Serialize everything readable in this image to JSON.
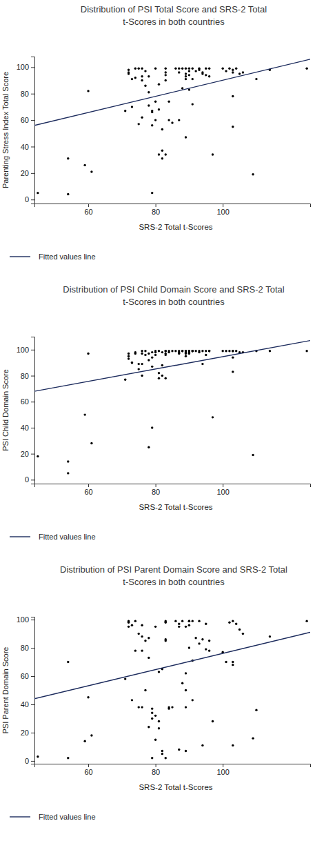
{
  "chart_data": [
    {
      "type": "scatter",
      "title": [
        "Distribution of PSI Total Score and SRS-2 Total",
        "t-Scores in both countries"
      ],
      "x_label": "SRS-2 Total t-Scores",
      "y_label": "Parenting Stress Index Total Score",
      "xlim": [
        44,
        126
      ],
      "xticks": [
        60,
        80,
        100
      ],
      "ylim": [
        -3,
        108
      ],
      "yticks": [
        0,
        20,
        40,
        60,
        80,
        100
      ],
      "grid": false,
      "legend": "bottom",
      "series": [
        {
          "type": "scatter",
          "marker": "circle",
          "color": "#000000",
          "x": [
            45,
            54,
            54,
            59,
            60,
            61,
            71,
            72,
            72,
            72,
            73,
            73,
            74,
            74,
            75,
            75,
            76,
            76,
            76,
            76,
            77,
            77,
            78,
            78,
            78,
            79,
            79,
            79,
            79,
            80,
            80,
            80,
            81,
            81,
            81,
            82,
            82,
            82,
            83,
            83,
            83,
            83,
            83,
            84,
            84,
            85,
            86,
            87,
            87,
            87,
            88,
            88,
            89,
            89,
            89,
            89,
            89,
            90,
            90,
            90,
            90,
            91,
            91,
            91,
            92,
            93,
            93,
            94,
            94,
            95,
            95,
            96,
            96,
            97,
            100,
            101,
            102,
            103,
            103,
            103,
            103,
            104,
            105,
            106,
            109,
            110,
            114,
            125
          ],
          "values": [
            5,
            4,
            31,
            26,
            82,
            21,
            67,
            98,
            96,
            95,
            91,
            70,
            99,
            92,
            99,
            57,
            93,
            99,
            90,
            62,
            86,
            97,
            93,
            71,
            81,
            67,
            66,
            56,
            5,
            99,
            74,
            60,
            34,
            87,
            68,
            37,
            31,
            53,
            99,
            96,
            94,
            90,
            34,
            74,
            60,
            58,
            99,
            99,
            96,
            60,
            99,
            84,
            99,
            95,
            93,
            91,
            47,
            99,
            97,
            94,
            83,
            99,
            91,
            72,
            97,
            99,
            98,
            96,
            95,
            99,
            94,
            99,
            93,
            34,
            99,
            97,
            99,
            98,
            96,
            78,
            55,
            99,
            95,
            96,
            19,
            91,
            98,
            99
          ]
        },
        {
          "type": "line",
          "name": "Fitted values line",
          "color": "#1b2a5c",
          "line_style": "solid",
          "x": [
            44,
            126
          ],
          "values": [
            56,
            106
          ]
        }
      ]
    },
    {
      "type": "scatter",
      "title": [
        "Distribution of PSI Child Domain Score and SRS-2 Total",
        "t-Scores in both countries"
      ],
      "x_label": "SRS-2 Total t-Scores",
      "y_label": "PSI Child Domain Score",
      "xlim": [
        44,
        126
      ],
      "xticks": [
        60,
        80,
        100
      ],
      "ylim": [
        -3,
        110
      ],
      "yticks": [
        0,
        20,
        40,
        60,
        80,
        100
      ],
      "grid": false,
      "legend": "bottom",
      "series": [
        {
          "type": "scatter",
          "marker": "circle",
          "color": "#000000",
          "x": [
            45,
            54,
            54,
            59,
            60,
            61,
            71,
            72,
            72,
            72,
            73,
            73,
            74,
            74,
            75,
            75,
            76,
            76,
            76,
            76,
            77,
            77,
            78,
            78,
            78,
            79,
            79,
            79,
            79,
            80,
            80,
            80,
            81,
            81,
            81,
            82,
            82,
            82,
            83,
            83,
            83,
            83,
            83,
            84,
            84,
            85,
            86,
            87,
            87,
            87,
            88,
            88,
            89,
            89,
            89,
            89,
            89,
            90,
            90,
            90,
            90,
            91,
            91,
            91,
            92,
            93,
            93,
            94,
            94,
            95,
            95,
            96,
            96,
            97,
            100,
            101,
            102,
            103,
            103,
            103,
            103,
            104,
            105,
            106,
            109,
            110,
            114,
            125
          ],
          "values": [
            18,
            14,
            5,
            50,
            97,
            28,
            77,
            97,
            95,
            93,
            90,
            90,
            98,
            97,
            89,
            85,
            97,
            80,
            99,
            89,
            96,
            99,
            97,
            25,
            92,
            98,
            40,
            94,
            87,
            99,
            98,
            96,
            82,
            78,
            99,
            80,
            88,
            98,
            99,
            97,
            99,
            78,
            96,
            99,
            98,
            99,
            99,
            99,
            97,
            98,
            99,
            99,
            99,
            98,
            95,
            97,
            99,
            99,
            98,
            99,
            97,
            99,
            99,
            99,
            99,
            99,
            98,
            99,
            89,
            99,
            96,
            99,
            99,
            48,
            99,
            99,
            99,
            99,
            99,
            94,
            83,
            99,
            98,
            98,
            19,
            99,
            99,
            99
          ]
        },
        {
          "type": "line",
          "name": "Fitted values line",
          "color": "#1b2a5c",
          "line_style": "solid",
          "x": [
            44,
            126
          ],
          "values": [
            68,
            107
          ]
        }
      ]
    },
    {
      "type": "scatter",
      "title": [
        "Distribution of PSI Parent Domain Score and SRS-2 Total",
        "t-Scores in both countries"
      ],
      "x_label": "SRS-2 Total t-Scores",
      "y_label": "PSI Parent Domain Score",
      "xlim": [
        44,
        126
      ],
      "xticks": [
        60,
        80,
        100
      ],
      "ylim": [
        -2,
        102
      ],
      "yticks": [
        0,
        20,
        40,
        60,
        80,
        100
      ],
      "grid": false,
      "legend": "bottom",
      "series": [
        {
          "type": "scatter",
          "marker": "circle",
          "color": "#000000",
          "x": [
            45,
            54,
            54,
            59,
            60,
            61,
            71,
            72,
            72,
            72,
            73,
            73,
            74,
            74,
            75,
            75,
            76,
            76,
            76,
            76,
            77,
            77,
            78,
            78,
            78,
            79,
            79,
            79,
            79,
            80,
            80,
            80,
            81,
            81,
            81,
            82,
            82,
            82,
            83,
            83,
            83,
            83,
            83,
            84,
            84,
            85,
            86,
            87,
            87,
            87,
            88,
            88,
            89,
            89,
            89,
            89,
            89,
            90,
            90,
            90,
            90,
            91,
            91,
            91,
            92,
            93,
            93,
            94,
            94,
            95,
            95,
            96,
            96,
            97,
            100,
            101,
            102,
            103,
            103,
            103,
            103,
            104,
            105,
            106,
            109,
            110,
            114,
            125
          ],
          "values": [
            3,
            2,
            70,
            14,
            45,
            18,
            58,
            99,
            98,
            95,
            96,
            43,
            78,
            99,
            90,
            38,
            88,
            96,
            78,
            38,
            50,
            85,
            87,
            24,
            73,
            34,
            37,
            30,
            2,
            95,
            15,
            32,
            28,
            63,
            23,
            65,
            5,
            7,
            98,
            85,
            99,
            86,
            2,
            38,
            37,
            38,
            99,
            95,
            8,
            97,
            99,
            55,
            95,
            50,
            38,
            7,
            62,
            99,
            96,
            99,
            80,
            99,
            43,
            71,
            87,
            99,
            83,
            11,
            86,
            97,
            79,
            85,
            78,
            28,
            77,
            70,
            98,
            99,
            70,
            68,
            11,
            97,
            93,
            90,
            16,
            36,
            88,
            99
          ]
        },
        {
          "type": "line",
          "name": "Fitted values line",
          "color": "#1b2a5c",
          "line_style": "solid",
          "x": [
            44,
            126
          ],
          "values": [
            44,
            91
          ]
        }
      ]
    }
  ]
}
